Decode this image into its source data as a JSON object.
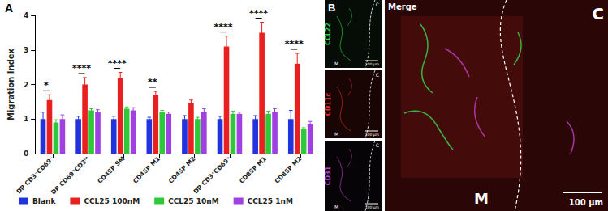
{
  "panel_a_label": "A",
  "chart_data": {
    "type": "bar",
    "y_label": "Migration Index",
    "categories": [
      "DP CD3⁻CD69⁻",
      "DP CD69⁺CD3ˡᵒ",
      "CD4SP SM",
      "CD4SP M1",
      "CD4SP M2",
      "DP CD3⁺CD69⁺",
      "CD8SP M1",
      "CD8SP M2"
    ],
    "series": [
      {
        "name": "Blank",
        "color": "#2233dd",
        "values": [
          1.0,
          1.0,
          1.0,
          1.0,
          1.0,
          1.0,
          1.0,
          1.0
        ],
        "errors": [
          0.2,
          0.08,
          0.08,
          0.05,
          0.1,
          0.08,
          0.1,
          0.25
        ]
      },
      {
        "name": "CCL25 100nM",
        "color": "#e82020",
        "values": [
          1.55,
          2.0,
          2.2,
          1.7,
          1.45,
          3.1,
          3.5,
          2.6
        ],
        "errors": [
          0.15,
          0.2,
          0.15,
          0.1,
          0.1,
          0.3,
          0.3,
          0.3
        ]
      },
      {
        "name": "CCL25 10nM",
        "color": "#2ec83a",
        "values": [
          0.9,
          1.25,
          1.3,
          1.2,
          1.0,
          1.15,
          1.15,
          0.7
        ],
        "errors": [
          0.08,
          0.05,
          0.05,
          0.05,
          0.05,
          0.08,
          0.08,
          0.05
        ]
      },
      {
        "name": "CCL25 1nM",
        "color": "#a040e0",
        "values": [
          1.0,
          1.2,
          1.25,
          1.15,
          1.2,
          1.15,
          1.2,
          0.85
        ],
        "errors": [
          0.12,
          0.07,
          0.08,
          0.05,
          0.1,
          0.05,
          0.1,
          0.08
        ]
      }
    ],
    "significance": [
      "*",
      "****",
      "****",
      "**",
      null,
      "****",
      "****",
      "****"
    ],
    "ylim": [
      0,
      4
    ],
    "yticks": [
      0,
      1,
      2,
      3,
      4
    ],
    "grid": false,
    "legend": "bottom"
  },
  "panel_b": {
    "label": "B",
    "channels": [
      {
        "label": "CCL22",
        "color": "#35d04a"
      },
      {
        "label": "CD11c",
        "color": "#e0302a"
      },
      {
        "label": "CD31",
        "color": "#c040c0"
      }
    ],
    "merge_label": "Merge",
    "cortex_label": "C",
    "medulla_label": "M",
    "scale_bar": "100 µm"
  }
}
